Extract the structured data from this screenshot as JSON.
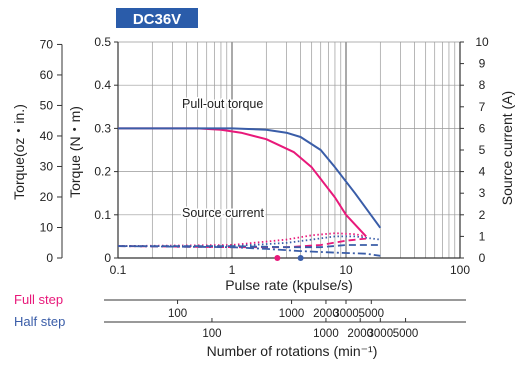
{
  "chart_data": {
    "type": "line",
    "title": "DC36V",
    "title_bg": "#2a5caa",
    "xlabel": "Pulse rate (kpulse/s)",
    "x_scale": "log",
    "xlim": [
      0.1,
      100
    ],
    "x_ticks": [
      {
        "value": 0.1,
        "label": "0.1"
      },
      {
        "value": 1,
        "label": "1"
      },
      {
        "value": 10,
        "label": "10"
      },
      {
        "value": 100,
        "label": "100"
      }
    ],
    "y_left_inner": {
      "label": "Torque (N・m)",
      "ylim": [
        0,
        0.5
      ],
      "ticks": [
        "0",
        "0.1",
        "0.2",
        "0.3",
        "0.4",
        "0.5"
      ]
    },
    "y_left_outer": {
      "label": "Torque(oz・in.)",
      "ylim": [
        0,
        70.8
      ],
      "ticks": [
        {
          "value": 0,
          "label": "0"
        },
        {
          "value": 10,
          "label": "10"
        },
        {
          "value": 20,
          "label": "20"
        },
        {
          "value": 30,
          "label": "30"
        },
        {
          "value": 40,
          "label": "40"
        },
        {
          "value": 50,
          "label": "50"
        },
        {
          "value": 60,
          "label": "60"
        },
        {
          "value": 70,
          "label": "70"
        }
      ]
    },
    "y_right": {
      "label": "Source current (A)",
      "ylim": [
        0,
        10
      ],
      "ticks": [
        "0",
        "1",
        "2",
        "3",
        "4",
        "5",
        "6",
        "7",
        "8",
        "9",
        "10"
      ]
    },
    "grid": true,
    "annotations": [
      {
        "text": "Pull-out torque"
      },
      {
        "text": "Source current"
      }
    ],
    "series": [
      {
        "color": "#e8197a",
        "style": "solid",
        "axis": "torque",
        "x": [
          0.1,
          0.5,
          0.8,
          1.2,
          2,
          3.5,
          5,
          8,
          10,
          15
        ],
        "y": [
          0.3,
          0.3,
          0.297,
          0.29,
          0.275,
          0.245,
          0.21,
          0.14,
          0.1,
          0.05
        ]
      },
      {
        "color": "#3a5da8",
        "style": "solid",
        "axis": "torque",
        "x": [
          0.1,
          1,
          2,
          3,
          4,
          6,
          8,
          12,
          20
        ],
        "y": [
          0.3,
          0.3,
          0.297,
          0.29,
          0.28,
          0.25,
          0.21,
          0.15,
          0.07
        ]
      },
      {
        "color": "#e8197a",
        "style": "dotted",
        "axis": "current",
        "x": [
          0.1,
          1,
          3,
          5,
          8,
          12,
          15
        ],
        "y": [
          0.55,
          0.6,
          0.85,
          1.05,
          1.15,
          1.1,
          1.0
        ]
      },
      {
        "color": "#3a5da8",
        "style": "dotted",
        "axis": "current",
        "x": [
          0.1,
          1,
          3,
          5,
          8,
          12,
          20
        ],
        "y": [
          0.55,
          0.55,
          0.7,
          0.85,
          1.0,
          1.0,
          0.85
        ]
      },
      {
        "color": "#e8197a",
        "style": "dashed",
        "axis": "current",
        "x": [
          0.1,
          1,
          3,
          6,
          10,
          15
        ],
        "y": [
          0.55,
          0.5,
          0.5,
          0.6,
          0.8,
          0.9
        ]
      },
      {
        "color": "#3a5da8",
        "style": "dashed",
        "axis": "current",
        "x": [
          0.1,
          1,
          3,
          6,
          10,
          20
        ],
        "y": [
          0.55,
          0.55,
          0.5,
          0.5,
          0.6,
          0.6
        ]
      },
      {
        "color": "#3a5da8",
        "style": "dashdot",
        "axis": "current",
        "x": [
          0.1,
          1,
          2,
          4,
          8,
          15,
          20
        ],
        "y": [
          0.55,
          0.5,
          0.42,
          0.32,
          0.25,
          0.2,
          0.1
        ]
      }
    ],
    "markers": [
      {
        "x": 2.5,
        "y": 0,
        "color": "#e8197a"
      },
      {
        "x": 4,
        "y": 0,
        "color": "#3a5da8"
      }
    ],
    "rotation_scales": [
      {
        "label": "Full step",
        "color": "#e8197a",
        "ticks": [
          {
            "value": 100,
            "at_pulse": 0.333,
            "label": "100"
          },
          {
            "value": 1000,
            "at_pulse": 3.33,
            "label": "1000"
          },
          {
            "value": 2000,
            "at_pulse": 6.67,
            "label": "2000"
          },
          {
            "value": 3000,
            "at_pulse": 10,
            "label": "3000"
          },
          {
            "value": 5000,
            "at_pulse": 16.67,
            "label": "5000"
          }
        ]
      },
      {
        "label": "Half step",
        "color": "#3a5da8",
        "ticks": [
          {
            "value": 100,
            "at_pulse": 0.667,
            "label": "100"
          },
          {
            "value": 1000,
            "at_pulse": 6.67,
            "label": "1000"
          },
          {
            "value": 2000,
            "at_pulse": 13.33,
            "label": "2000"
          },
          {
            "value": 3000,
            "at_pulse": 20,
            "label": "3000"
          },
          {
            "value": 5000,
            "at_pulse": 33.3,
            "label": "5000"
          }
        ]
      }
    ],
    "rotation_label": "Number of rotations (min⁻¹)"
  }
}
